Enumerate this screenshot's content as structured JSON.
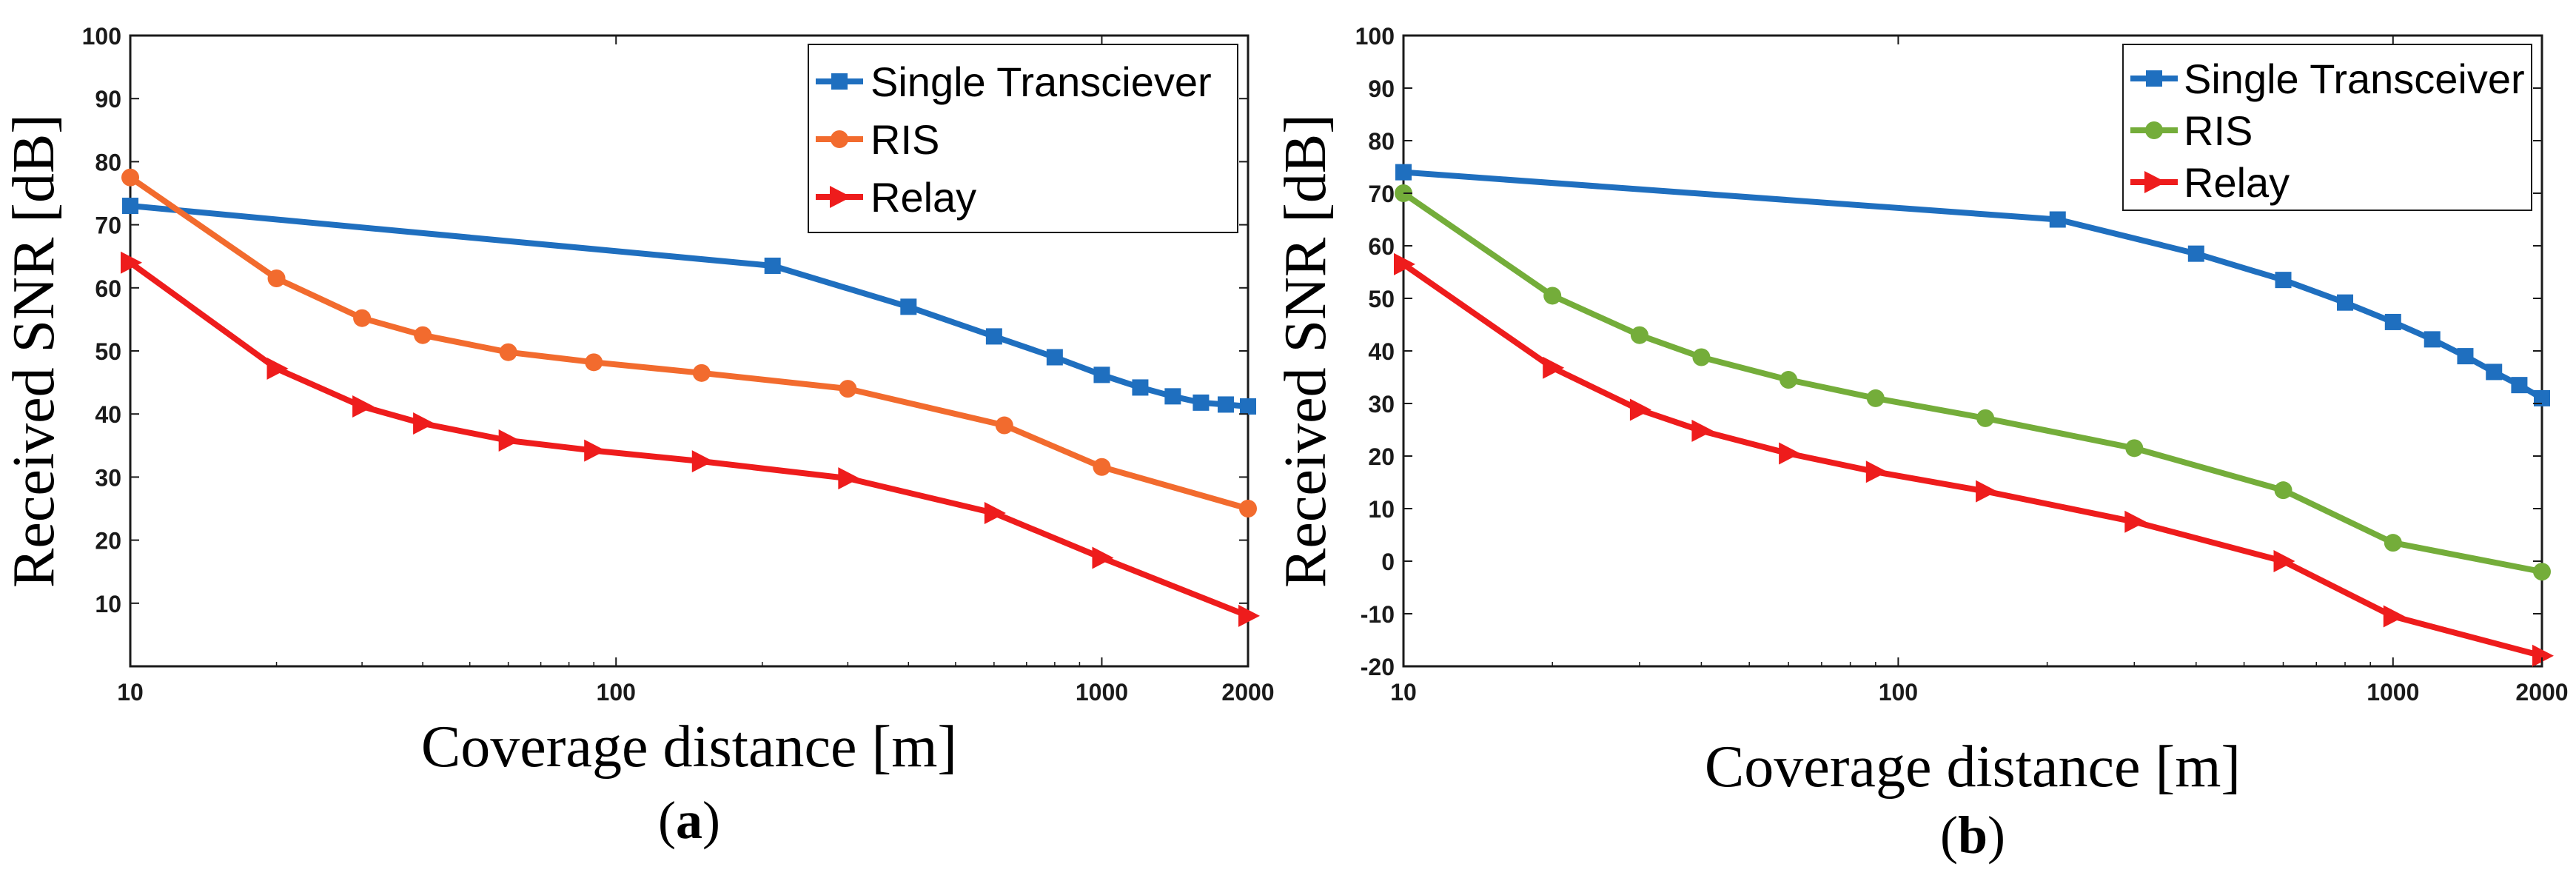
{
  "chart_data": [
    {
      "type": "line",
      "caption": {
        "open": "(",
        "letter": "a",
        "close": ")"
      },
      "xlabel": "Coverage distance [m]",
      "ylabel": "Received SNR [dB]",
      "xscale": "log",
      "xlim": [
        10,
        2000
      ],
      "ylim": [
        0,
        100
      ],
      "xticks": [
        {
          "value": 10,
          "label": "10"
        },
        {
          "value": 100,
          "label": "100"
        },
        {
          "value": 1000,
          "label": "1000"
        },
        {
          "value": 2000,
          "label": "2000"
        }
      ],
      "yticks": [
        {
          "value": 10,
          "label": "10"
        },
        {
          "value": 20,
          "label": "20"
        },
        {
          "value": 30,
          "label": "30"
        },
        {
          "value": 40,
          "label": "40"
        },
        {
          "value": 50,
          "label": "50"
        },
        {
          "value": 60,
          "label": "60"
        },
        {
          "value": 70,
          "label": "70"
        },
        {
          "value": 80,
          "label": "80"
        },
        {
          "value": 90,
          "label": "90"
        },
        {
          "value": 100,
          "label": "100"
        }
      ],
      "legend_position": "top-right",
      "series": [
        {
          "name": "Single Transciever",
          "color": "#1f6fbf",
          "marker": "square",
          "x": [
            10,
            210,
            400,
            600,
            800,
            1000,
            1200,
            1400,
            1600,
            1800,
            2000
          ],
          "y": [
            73,
            63.5,
            57,
            52.3,
            49,
            46.2,
            44.2,
            42.8,
            41.8,
            41.5,
            41.2
          ]
        },
        {
          "name": "RIS",
          "color": "#f26b2e",
          "marker": "circle",
          "x": [
            10,
            20,
            30,
            40,
            60,
            90,
            150,
            300,
            630,
            1000,
            2000
          ],
          "y": [
            77.5,
            61.5,
            55.2,
            52.5,
            49.8,
            48.2,
            46.5,
            44,
            38.2,
            31.6,
            25
          ]
        },
        {
          "name": "Relay",
          "color": "#ee1c1c",
          "marker": "triangle-right",
          "x": [
            10,
            20,
            30,
            40,
            60,
            90,
            150,
            300,
            600,
            1000,
            2000
          ],
          "y": [
            64,
            47.2,
            41.2,
            38.5,
            35.8,
            34.2,
            32.5,
            29.8,
            24.3,
            17.2,
            8
          ]
        }
      ]
    },
    {
      "type": "line",
      "caption": {
        "open": "(",
        "letter": "b",
        "close": ")"
      },
      "xlabel": "Coverage distance [m]",
      "ylabel": "Received SNR [dB]",
      "xscale": "log",
      "xlim": [
        10,
        2000
      ],
      "ylim": [
        -20,
        100
      ],
      "xticks": [
        {
          "value": 10,
          "label": "10"
        },
        {
          "value": 100,
          "label": "100"
        },
        {
          "value": 1000,
          "label": "1000"
        },
        {
          "value": 2000,
          "label": "2000"
        }
      ],
      "yticks": [
        {
          "value": -20,
          "label": "-20"
        },
        {
          "value": -10,
          "label": "-10"
        },
        {
          "value": 0,
          "label": "0"
        },
        {
          "value": 10,
          "label": "10"
        },
        {
          "value": 20,
          "label": "20"
        },
        {
          "value": 30,
          "label": "30"
        },
        {
          "value": 40,
          "label": "40"
        },
        {
          "value": 50,
          "label": "50"
        },
        {
          "value": 60,
          "label": "60"
        },
        {
          "value": 70,
          "label": "70"
        },
        {
          "value": 80,
          "label": "80"
        },
        {
          "value": 90,
          "label": "90"
        },
        {
          "value": 100,
          "label": "100"
        }
      ],
      "legend_position": "top-right",
      "series": [
        {
          "name": "Single Transceiver",
          "color": "#1f6fbf",
          "marker": "square",
          "x": [
            10,
            210,
            400,
            600,
            800,
            1000,
            1200,
            1400,
            1600,
            1800,
            2000
          ],
          "y": [
            74,
            65,
            58.5,
            53.5,
            49.2,
            45.5,
            42.2,
            39,
            36,
            33.5,
            31
          ]
        },
        {
          "name": "RIS",
          "color": "#74ad3a",
          "marker": "circle",
          "x": [
            10,
            20,
            30,
            40,
            60,
            90,
            150,
            300,
            600,
            1000,
            2000
          ],
          "y": [
            70,
            50.5,
            43,
            38.8,
            34.5,
            31,
            27.2,
            21.5,
            13.5,
            3.5,
            -2
          ]
        },
        {
          "name": "Relay",
          "color": "#ee1c1c",
          "marker": "triangle-right",
          "x": [
            10,
            20,
            30,
            40,
            60,
            90,
            150,
            300,
            600,
            1000,
            2000
          ],
          "y": [
            56.5,
            36.8,
            28.8,
            24.8,
            20.5,
            17,
            13.3,
            7.5,
            0,
            -10.5,
            -18
          ]
        }
      ]
    }
  ]
}
